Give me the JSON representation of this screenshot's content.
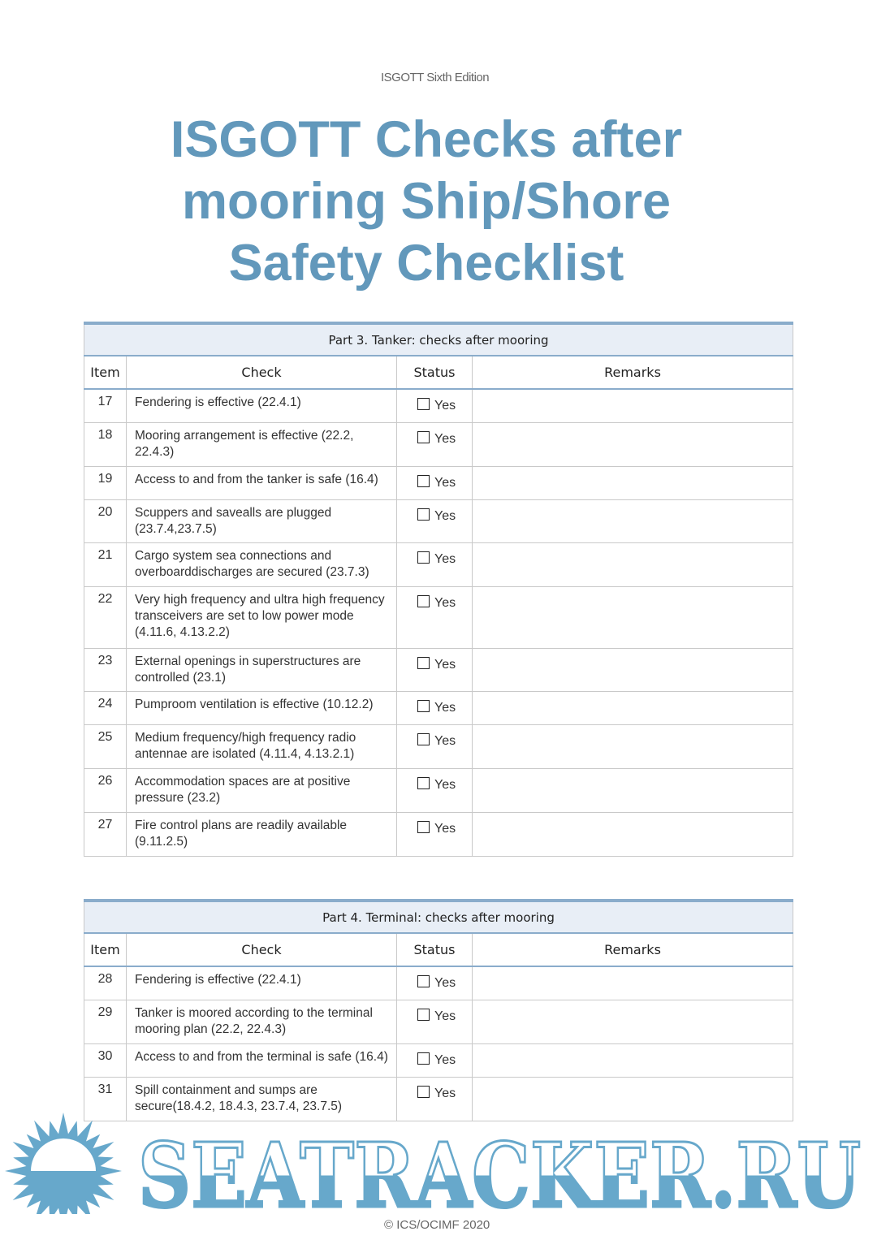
{
  "header": {
    "edition": "ISGOTT Sixth Edition",
    "title_lines": [
      "ISGOTT Checks after",
      "mooring Ship/Shore",
      "Safety Checklist"
    ]
  },
  "columns": {
    "item": "Item",
    "check": "Check",
    "status": "Status",
    "remarks": "Remarks"
  },
  "part3": {
    "title": "Part 3. Tanker: checks after mooring",
    "rows": [
      {
        "item": "17",
        "check": "Fendering is effective (22.4.1)",
        "status": "Yes"
      },
      {
        "item": "18",
        "check": "Mooring arrangement is effective (22.2, 22.4.3)",
        "status": "Yes"
      },
      {
        "item": "19",
        "check": "Access to and from the tanker is safe (16.4)",
        "status": "Yes"
      },
      {
        "item": "20",
        "check": "Scuppers and savealls are plugged (23.7.4,23.7.5)",
        "status": "Yes"
      },
      {
        "item": "21",
        "check": "Cargo system sea connections and overboarddischarges are secured (23.7.3)",
        "status": "Yes"
      },
      {
        "item": "22",
        "check": "Very high frequency and ultra high frequency transceivers are set to low power mode (4.11.6, 4.13.2.2)",
        "status": "Yes"
      },
      {
        "item": "23",
        "check": "External openings in superstructures are controlled (23.1)",
        "status": "Yes"
      },
      {
        "item": "24",
        "check": "Pumproom ventilation is effective (10.12.2)",
        "status": "Yes"
      },
      {
        "item": "25",
        "check": "Medium frequency/high frequency radio antennae are isolated (4.11.4, 4.13.2.1)",
        "status": "Yes"
      },
      {
        "item": "26",
        "check": "Accommodation spaces are at positive pressure (23.2)",
        "status": "Yes"
      },
      {
        "item": "27",
        "check": "Fire control plans are readily available (9.11.2.5)",
        "status": "Yes"
      }
    ]
  },
  "part4": {
    "title": "Part 4. Terminal: checks after mooring",
    "rows": [
      {
        "item": "28",
        "check": "Fendering is effective (22.4.1)",
        "status": "Yes"
      },
      {
        "item": "29",
        "check": "Tanker is moored according to the terminal mooring plan (22.2, 22.4.3)",
        "status": "Yes"
      },
      {
        "item": "30",
        "check": "Access to and from the terminal is safe (16.4)",
        "status": "Yes"
      },
      {
        "item": "31",
        "check": "Spill containment and sumps are secure(18.4.2, 18.4.3, 23.7.4, 23.7.5)",
        "status": "Yes"
      }
    ]
  },
  "watermark": {
    "text": "SEATRACKER.RU",
    "color": "#67a8cb"
  },
  "footer": {
    "copyright": "© ICS/OCIMF 2020"
  }
}
